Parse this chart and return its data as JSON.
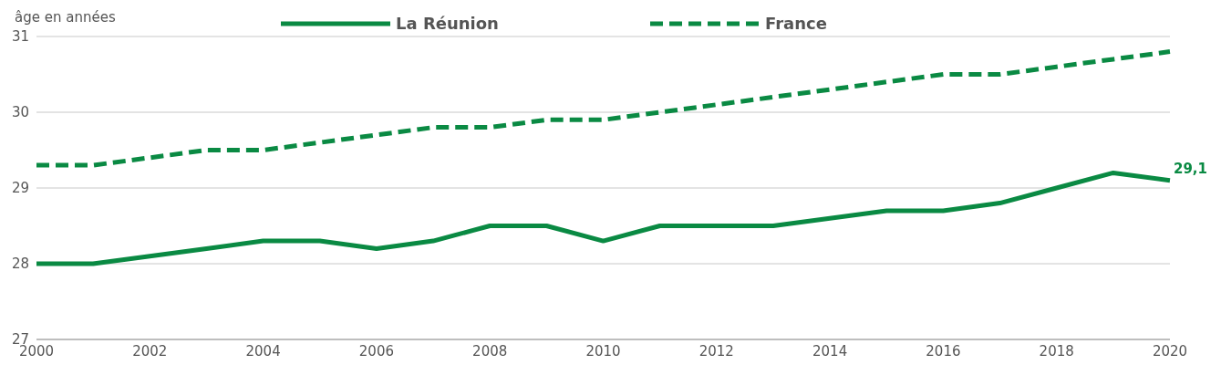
{
  "chart_data": {
    "type": "line",
    "ylabel": "âge en années",
    "x": [
      2000,
      2001,
      2002,
      2003,
      2004,
      2005,
      2006,
      2007,
      2008,
      2009,
      2010,
      2011,
      2012,
      2013,
      2014,
      2015,
      2016,
      2017,
      2018,
      2019,
      2020
    ],
    "series": [
      {
        "name": "La Réunion",
        "color": "#0a8a43",
        "line_style": "solid",
        "values": [
          28.0,
          28.0,
          28.1,
          28.2,
          28.3,
          28.3,
          28.2,
          28.3,
          28.5,
          28.5,
          28.3,
          28.5,
          28.5,
          28.5,
          28.6,
          28.7,
          28.7,
          28.8,
          29.0,
          29.2,
          29.1
        ]
      },
      {
        "name": "France",
        "color": "#0a8a43",
        "line_style": "dashed",
        "values": [
          29.3,
          29.3,
          29.4,
          29.5,
          29.5,
          29.6,
          29.7,
          29.8,
          29.8,
          29.9,
          29.9,
          30.0,
          30.1,
          30.2,
          30.3,
          30.4,
          30.5,
          30.5,
          30.6,
          30.7,
          30.8
        ]
      }
    ],
    "annotations": [
      {
        "text": "29,1",
        "x": 2020,
        "y": 29.1
      }
    ],
    "xlim": [
      2000,
      2020
    ],
    "ylim": [
      27,
      31
    ],
    "xticks": [
      2000,
      2002,
      2004,
      2006,
      2008,
      2010,
      2012,
      2014,
      2016,
      2018,
      2020
    ],
    "yticks": [
      27,
      28,
      29,
      30,
      31
    ],
    "grid": "y",
    "legend": "top",
    "marker": "none"
  }
}
